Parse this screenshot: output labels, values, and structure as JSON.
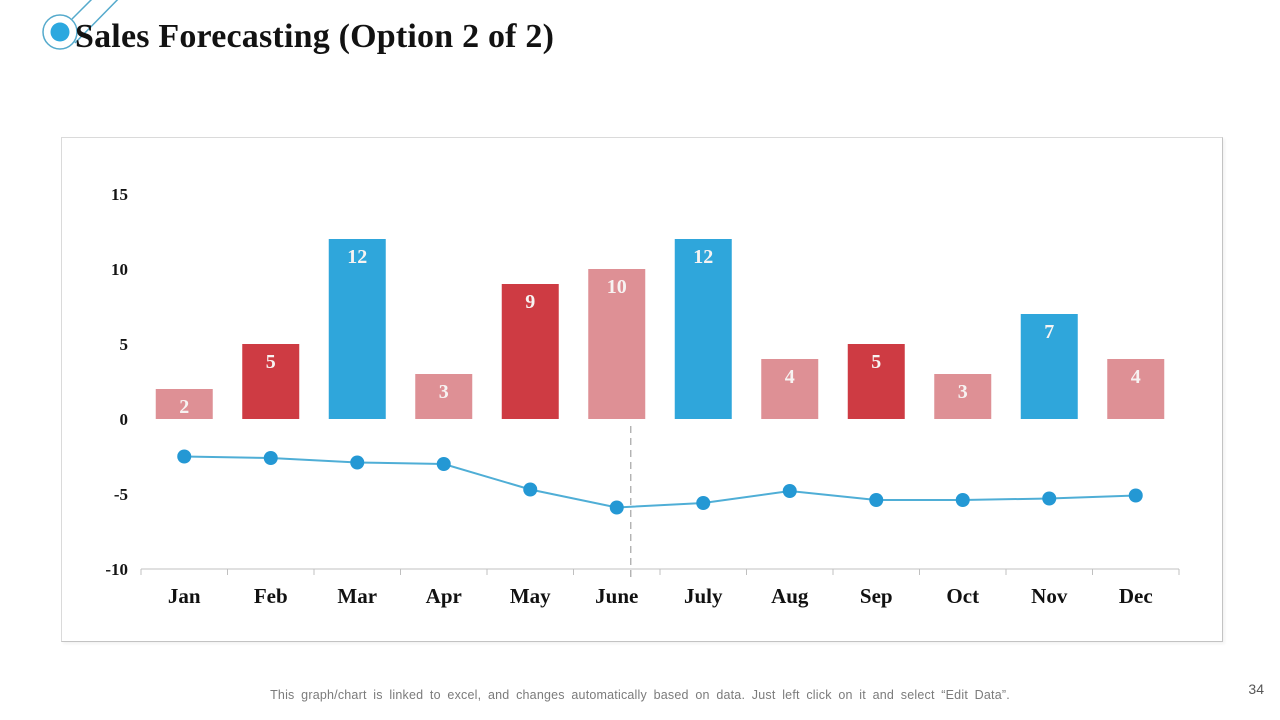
{
  "slide": {
    "title": "Sales Forecasting (Option 2 of 2)",
    "caption": "This graph/chart is linked to excel, and changes automatically based on data. Just left click on it and select “Edit Data”.",
    "page_number": "34",
    "header_icon": "comet-icon"
  },
  "colors": {
    "bar_pink": "#DE9095",
    "bar_red": "#CE3B43",
    "bar_blue": "#2FA6DB",
    "line_stroke": "#4FAED6",
    "marker_fill": "#2498D4",
    "bar_label": "#F7F3F2",
    "axis_line": "#C0C0C0",
    "divider_line": "#ABABAB",
    "tick_label": "#141414",
    "icon_blue": "#2CA8DF",
    "icon_stroke": "#55AACC"
  },
  "chart_data": {
    "type": "bar",
    "subtype": "combo bar + line",
    "title": "",
    "xlabel": "",
    "ylabel": "",
    "categories": [
      "Jan",
      "Feb",
      "Mar",
      "Apr",
      "May",
      "June",
      "July",
      "Aug",
      "Sep",
      "Oct",
      "Nov",
      "Dec"
    ],
    "series": [
      {
        "name": "monthly-bars",
        "type": "bar",
        "values": [
          2,
          5,
          12,
          3,
          9,
          10,
          12,
          4,
          5,
          3,
          7,
          4
        ],
        "bar_colors": [
          "pink",
          "red",
          "blue",
          "pink",
          "red",
          "pink",
          "blue",
          "pink",
          "red",
          "pink",
          "blue",
          "pink"
        ],
        "data_labels": [
          "2",
          "5",
          "12",
          "3",
          "9",
          "10",
          "12",
          "4",
          "5",
          "3",
          "7",
          "4"
        ]
      },
      {
        "name": "trend-line",
        "type": "line",
        "values": [
          -2.5,
          -2.6,
          -2.9,
          -3.0,
          -4.7,
          -5.9,
          -5.6,
          -4.8,
          -5.4,
          -5.4,
          -5.3,
          -5.1
        ]
      }
    ],
    "y_ticks": [
      15,
      10,
      5,
      0,
      -5,
      -10
    ],
    "ylim": [
      -10,
      17
    ],
    "grid": false,
    "legend": false,
    "divider_after_category": "June"
  }
}
